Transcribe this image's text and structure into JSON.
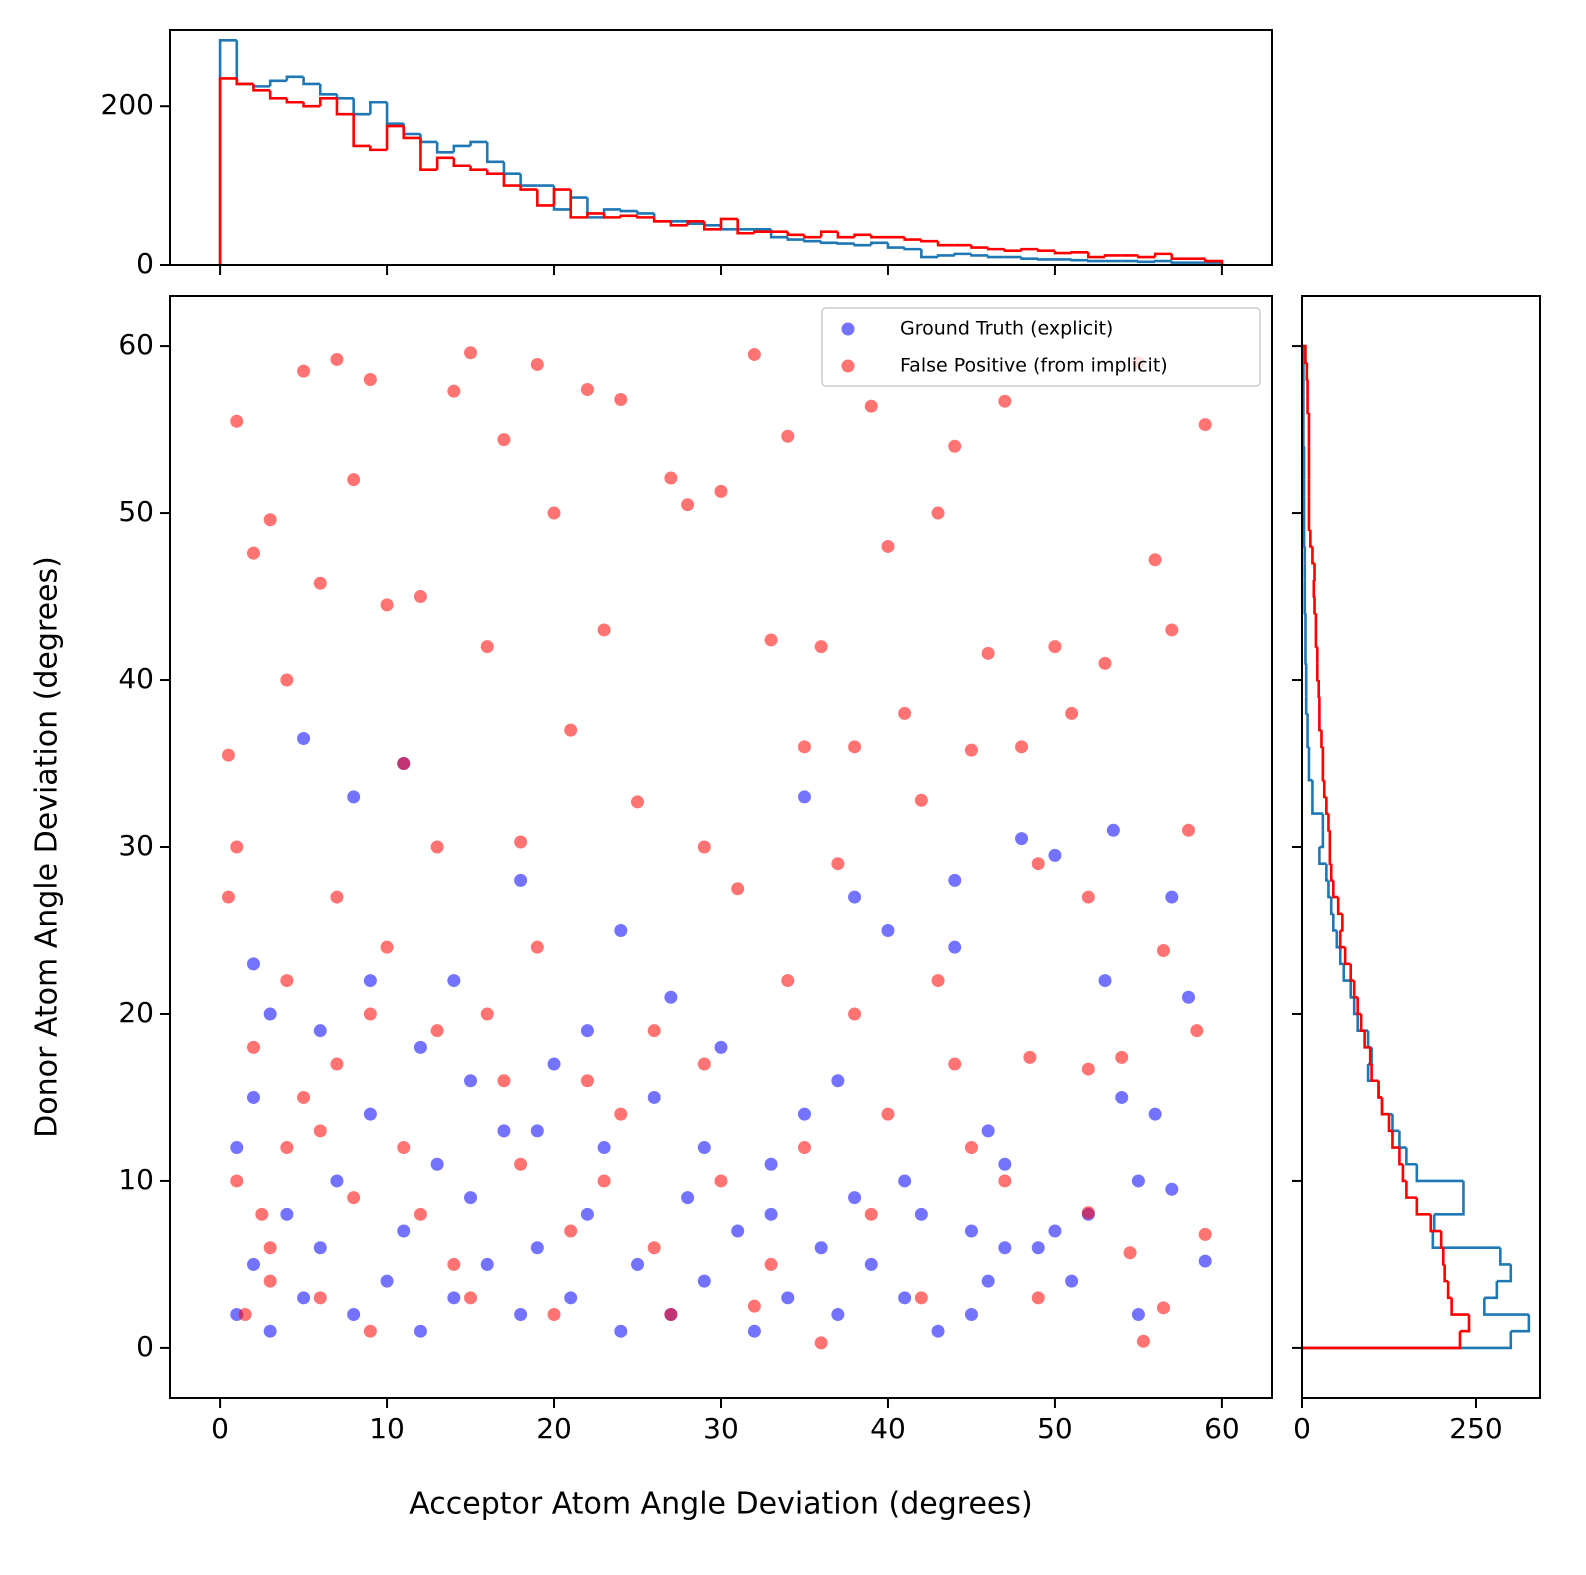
{
  "chart_data": [
    {
      "type": "scatter",
      "xlabel": "Acceptor Atom Angle Deviation (degrees)",
      "ylabel": "Donor Atom Angle Deviation (degrees)",
      "xlim": [
        -3,
        63
      ],
      "ylim": [
        -3,
        63
      ],
      "xticks": [
        0,
        10,
        20,
        30,
        40,
        50,
        60
      ],
      "yticks": [
        0,
        10,
        20,
        30,
        40,
        50,
        60
      ],
      "legend": "upper right",
      "series": [
        {
          "name": "Ground Truth (explicit)",
          "color": "#0000ff",
          "x": [
            1,
            2,
            3,
            4,
            5,
            1,
            2,
            6,
            7,
            8,
            9,
            10,
            11,
            12,
            13,
            14,
            15,
            16,
            17,
            18,
            19,
            20,
            21,
            22,
            23,
            24,
            25,
            26,
            27,
            28,
            29,
            30,
            31,
            32,
            33,
            34,
            35,
            36,
            37,
            38,
            39,
            40,
            41,
            42,
            43,
            44,
            45,
            46,
            47,
            48,
            49,
            50,
            51,
            52,
            53,
            54,
            55,
            56,
            57,
            58,
            59,
            53.5,
            44,
            3,
            2,
            5,
            8,
            11,
            14,
            18,
            24,
            27,
            35,
            38,
            45,
            47,
            12,
            6,
            9,
            15,
            19,
            22,
            29,
            33,
            37,
            41,
            46,
            50,
            55,
            57
          ],
          "values": [
            2,
            5,
            1,
            8,
            3,
            12,
            15,
            6,
            10,
            2,
            14,
            4,
            7,
            1,
            11,
            3,
            9,
            5,
            13,
            2,
            6,
            17,
            3,
            8,
            12,
            1,
            5,
            15,
            2,
            9,
            4,
            18,
            7,
            1,
            11,
            3,
            14,
            6,
            2,
            9,
            5,
            25,
            3,
            8,
            1,
            24,
            7,
            4,
            11,
            30.5,
            6,
            29.5,
            4,
            8,
            22,
            15,
            10,
            14,
            27,
            21,
            5.2,
            31,
            28,
            20,
            23,
            36.5,
            33,
            35,
            22,
            28,
            25,
            21,
            33,
            27,
            2,
            6,
            18,
            19,
            22,
            16,
            13,
            19,
            12,
            8,
            16,
            10,
            13,
            7,
            2,
            9.5
          ]
        },
        {
          "name": "False Positive (from implicit)",
          "color": "#ff0000",
          "x": [
            0.5,
            1,
            2,
            3,
            4,
            5,
            6,
            7,
            8,
            9,
            10,
            11,
            12,
            13,
            14,
            15,
            16,
            17,
            18,
            19,
            20,
            21,
            22,
            23,
            24,
            25,
            27,
            28,
            29,
            30,
            32,
            33,
            34,
            35,
            36,
            37,
            38,
            39,
            40,
            41,
            42,
            43,
            44,
            45,
            46,
            47,
            48,
            49,
            50,
            51,
            52,
            53,
            54,
            55,
            56,
            57,
            58,
            59,
            58.5,
            56.5,
            55.3,
            54.5,
            52,
            48.5,
            45,
            42,
            39,
            36,
            33,
            30,
            27,
            24,
            21,
            18,
            15,
            12,
            9,
            6,
            3,
            1,
            2,
            4,
            7,
            10,
            13,
            16,
            19,
            22,
            26,
            31,
            34,
            38,
            43,
            47,
            52,
            56.5,
            59,
            0.5,
            1,
            3,
            5,
            8,
            11,
            14,
            17,
            20,
            23,
            26,
            29,
            32,
            35,
            40,
            44,
            49,
            1.5,
            2.5,
            4,
            6,
            7,
            9
          ],
          "values": [
            35.5,
            55.5,
            47.6,
            49.6,
            40,
            58.5,
            45.8,
            59.2,
            52,
            58,
            44.5,
            35,
            45,
            30,
            57.3,
            59.6,
            42,
            54.4,
            30.3,
            58.9,
            50,
            37,
            57.4,
            43,
            56.8,
            32.7,
            52.1,
            50.5,
            30,
            51.3,
            59.5,
            42.4,
            54.6,
            36,
            42,
            29,
            36,
            56.4,
            48,
            38,
            32.8,
            50,
            54,
            35.8,
            41.6,
            56.7,
            36,
            29,
            42,
            38,
            27,
            41,
            17.4,
            59,
            47.2,
            43,
            31,
            55.3,
            19,
            23.8,
            0.4,
            5.7,
            8.1,
            17.4,
            12,
            3,
            8,
            0.3,
            5,
            10,
            2,
            14,
            7,
            11,
            3,
            8,
            1,
            13,
            6,
            10,
            18,
            22,
            27,
            24,
            19,
            20,
            24,
            16,
            19,
            27.5,
            22,
            20,
            22,
            10,
            16.7,
            2.4,
            6.8,
            27,
            30,
            4,
            15,
            9,
            12,
            5,
            16,
            2,
            10,
            6,
            17,
            2.5,
            12,
            14,
            17,
            3,
            2,
            8,
            12,
            3,
            17,
            20
          ]
        }
      ]
    },
    {
      "type": "histogram",
      "orientation": "vertical",
      "xlim": [
        -3,
        63
      ],
      "ylim": [
        0,
        296
      ],
      "xticks": [
        0,
        10,
        20,
        30,
        40,
        50,
        60
      ],
      "yticks": [
        0,
        200
      ],
      "bins": [
        0,
        1,
        2,
        3,
        4,
        5,
        6,
        7,
        8,
        9,
        10,
        11,
        12,
        13,
        14,
        15,
        16,
        17,
        18,
        19,
        20,
        21,
        22,
        23,
        24,
        25,
        26,
        27,
        28,
        29,
        30,
        31,
        32,
        33,
        34,
        35,
        36,
        37,
        38,
        39,
        40,
        41,
        42,
        43,
        44,
        45,
        46,
        47,
        48,
        49,
        50,
        51,
        52,
        53,
        54,
        55,
        56,
        57,
        58,
        59,
        60
      ],
      "series": [
        {
          "color": "#1f77b4",
          "counts": [
            283,
            228,
            225,
            232,
            237,
            228,
            215,
            210,
            190,
            205,
            178,
            165,
            155,
            142,
            150,
            155,
            130,
            115,
            100,
            100,
            70,
            85,
            60,
            70,
            68,
            65,
            55,
            55,
            52,
            50,
            45,
            45,
            45,
            35,
            32,
            30,
            28,
            27,
            25,
            28,
            22,
            20,
            10,
            12,
            14,
            12,
            10,
            10,
            8,
            7,
            7,
            6,
            5,
            5,
            5,
            4,
            5,
            3,
            3,
            3
          ]
        },
        {
          "color": "#ff0000",
          "counts": [
            235,
            228,
            220,
            210,
            205,
            200,
            210,
            190,
            150,
            145,
            175,
            160,
            120,
            135,
            125,
            120,
            115,
            100,
            95,
            75,
            95,
            60,
            65,
            60,
            62,
            60,
            55,
            50,
            55,
            45,
            58,
            40,
            42,
            42,
            38,
            35,
            42,
            35,
            38,
            35,
            35,
            32,
            30,
            25,
            25,
            22,
            20,
            18,
            20,
            18,
            15,
            16,
            10,
            12,
            12,
            10,
            14,
            8,
            8,
            5
          ]
        }
      ]
    },
    {
      "type": "histogram",
      "orientation": "horizontal",
      "xlim": [
        0,
        342
      ],
      "ylim": [
        -3,
        63
      ],
      "xticks": [
        0,
        250
      ],
      "yticks": [
        0,
        10,
        20,
        30,
        40,
        50,
        60
      ],
      "bins": [
        0,
        1,
        2,
        3,
        4,
        5,
        6,
        7,
        8,
        9,
        10,
        11,
        12,
        13,
        14,
        15,
        16,
        17,
        18,
        19,
        20,
        21,
        22,
        23,
        24,
        25,
        26,
        27,
        28,
        29,
        30,
        31,
        32,
        33,
        34,
        35,
        36,
        37,
        38,
        39,
        40,
        41,
        42,
        43,
        44,
        45,
        46,
        47,
        48,
        49,
        50,
        51,
        52,
        53,
        54,
        55,
        56,
        57,
        58,
        59,
        60
      ],
      "series": [
        {
          "color": "#1f77b4",
          "counts": [
            300,
            326,
            262,
            280,
            300,
            285,
            188,
            190,
            232,
            232,
            165,
            150,
            140,
            130,
            115,
            110,
            95,
            100,
            95,
            80,
            75,
            70,
            60,
            55,
            50,
            45,
            42,
            38,
            35,
            25,
            30,
            30,
            15,
            15,
            10,
            10,
            8,
            8,
            6,
            6,
            6,
            5,
            5,
            5,
            4,
            4,
            4,
            4,
            3,
            3,
            3,
            3,
            3,
            3,
            2,
            2,
            2,
            2,
            2,
            2
          ]
        },
        {
          "color": "#ff0000",
          "counts": [
            227,
            240,
            215,
            210,
            205,
            203,
            200,
            185,
            165,
            150,
            145,
            140,
            130,
            125,
            115,
            110,
            100,
            98,
            90,
            85,
            80,
            75,
            70,
            62,
            55,
            58,
            52,
            45,
            42,
            40,
            40,
            38,
            35,
            32,
            30,
            30,
            28,
            25,
            25,
            24,
            22,
            22,
            20,
            20,
            18,
            17,
            18,
            15,
            12,
            10,
            10,
            10,
            10,
            10,
            10,
            10,
            8,
            8,
            7,
            5
          ]
        }
      ]
    }
  ]
}
